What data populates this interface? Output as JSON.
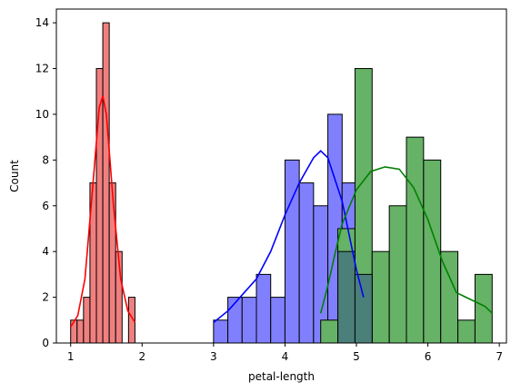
{
  "chart_data": {
    "type": "histogram",
    "xlabel": "petal-length",
    "ylabel": "Count",
    "xlim": [
      0.8,
      7.1
    ],
    "ylim": [
      0,
      14.6
    ],
    "xticks": [
      1,
      2,
      3,
      4,
      5,
      6,
      7
    ],
    "yticks": [
      0,
      2,
      4,
      6,
      8,
      10,
      12,
      14
    ],
    "grid": false,
    "legend": "none",
    "series": [
      {
        "color": "#ff0000",
        "fill": "#f08080",
        "bins": [
          {
            "start": 1.0,
            "end": 1.09,
            "count": 1
          },
          {
            "start": 1.09,
            "end": 1.18,
            "count": 1
          },
          {
            "start": 1.18,
            "end": 1.27,
            "count": 2
          },
          {
            "start": 1.27,
            "end": 1.36,
            "count": 7
          },
          {
            "start": 1.36,
            "end": 1.45,
            "count": 12
          },
          {
            "start": 1.45,
            "end": 1.54,
            "count": 14
          },
          {
            "start": 1.54,
            "end": 1.63,
            "count": 7
          },
          {
            "start": 1.63,
            "end": 1.72,
            "count": 4
          },
          {
            "start": 1.72,
            "end": 1.81,
            "count": 0
          },
          {
            "start": 1.81,
            "end": 1.9,
            "count": 2
          }
        ],
        "kde": [
          [
            1.0,
            0.7
          ],
          [
            1.1,
            1.2
          ],
          [
            1.2,
            2.8
          ],
          [
            1.3,
            6.5
          ],
          [
            1.4,
            10.3
          ],
          [
            1.45,
            10.8
          ],
          [
            1.5,
            10.0
          ],
          [
            1.6,
            6.0
          ],
          [
            1.7,
            2.8
          ],
          [
            1.8,
            1.4
          ],
          [
            1.9,
            0.9
          ]
        ]
      },
      {
        "color": "#0000ff",
        "fill": "#8080ff",
        "bins": [
          {
            "start": 3.0,
            "end": 3.2,
            "count": 1
          },
          {
            "start": 3.2,
            "end": 3.4,
            "count": 2
          },
          {
            "start": 3.4,
            "end": 3.6,
            "count": 2
          },
          {
            "start": 3.6,
            "end": 3.8,
            "count": 3
          },
          {
            "start": 3.8,
            "end": 4.0,
            "count": 2
          },
          {
            "start": 4.0,
            "end": 4.2,
            "count": 8
          },
          {
            "start": 4.2,
            "end": 4.4,
            "count": 7
          },
          {
            "start": 4.4,
            "end": 4.6,
            "count": 6
          },
          {
            "start": 4.6,
            "end": 4.8,
            "count": 10
          },
          {
            "start": 4.8,
            "end": 5.0,
            "count": 7
          }
        ],
        "kde": [
          [
            3.0,
            0.9
          ],
          [
            3.2,
            1.4
          ],
          [
            3.4,
            2.1
          ],
          [
            3.6,
            2.8
          ],
          [
            3.8,
            4.0
          ],
          [
            4.0,
            5.6
          ],
          [
            4.2,
            7.0
          ],
          [
            4.4,
            8.1
          ],
          [
            4.5,
            8.4
          ],
          [
            4.6,
            8.1
          ],
          [
            4.8,
            6.2
          ],
          [
            5.0,
            3.2
          ],
          [
            5.1,
            2.0
          ]
        ]
      },
      {
        "color": "#008000",
        "fill": "#66b266",
        "bins": [
          {
            "start": 4.5,
            "end": 4.74,
            "count": 1
          },
          {
            "start": 4.74,
            "end": 4.98,
            "count": 5
          },
          {
            "start": 4.98,
            "end": 5.22,
            "count": 12
          },
          {
            "start": 5.22,
            "end": 5.46,
            "count": 4
          },
          {
            "start": 5.46,
            "end": 5.7,
            "count": 6
          },
          {
            "start": 5.7,
            "end": 5.94,
            "count": 9
          },
          {
            "start": 5.94,
            "end": 6.18,
            "count": 8
          },
          {
            "start": 6.18,
            "end": 6.42,
            "count": 4
          },
          {
            "start": 6.42,
            "end": 6.66,
            "count": 1
          },
          {
            "start": 6.66,
            "end": 6.9,
            "count": 3
          }
        ],
        "overlap_bins": [
          {
            "start": 4.74,
            "end": 4.98,
            "count": 4
          },
          {
            "start": 4.98,
            "end": 5.22,
            "count": 3
          }
        ],
        "kde": [
          [
            4.5,
            1.3
          ],
          [
            4.6,
            2.5
          ],
          [
            4.7,
            3.9
          ],
          [
            4.8,
            5.2
          ],
          [
            5.0,
            6.7
          ],
          [
            5.2,
            7.5
          ],
          [
            5.4,
            7.7
          ],
          [
            5.6,
            7.6
          ],
          [
            5.8,
            6.8
          ],
          [
            6.0,
            5.4
          ],
          [
            6.2,
            3.6
          ],
          [
            6.4,
            2.2
          ],
          [
            6.6,
            1.9
          ],
          [
            6.8,
            1.6
          ],
          [
            6.9,
            1.3
          ]
        ]
      }
    ]
  }
}
